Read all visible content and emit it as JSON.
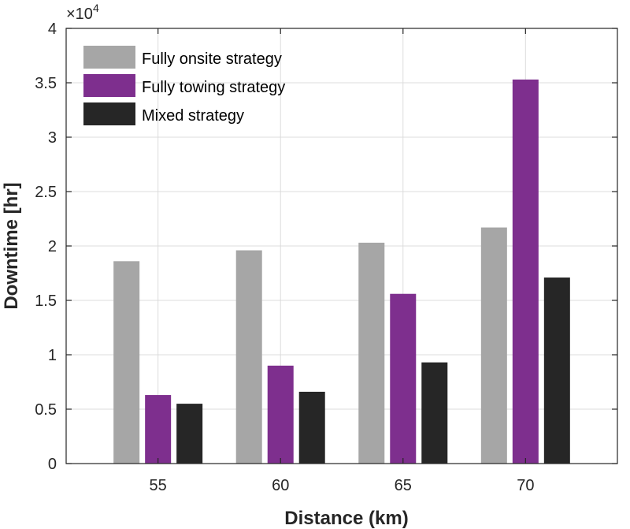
{
  "chart_data": {
    "type": "bar",
    "title": "",
    "xlabel": "Distance (km)",
    "ylabel": "Downtime [hr]",
    "y_multiplier_base": "×10",
    "y_multiplier_exp": "4",
    "categories": [
      "55",
      "60",
      "65",
      "70"
    ],
    "yticks": [
      "0",
      "0.5",
      "1",
      "1.5",
      "2",
      "2.5",
      "3",
      "3.5",
      "4"
    ],
    "ylim": [
      0,
      40000
    ],
    "grid": true,
    "legend_position": "top-left",
    "series": [
      {
        "name": "Fully onsite strategy",
        "color": "#a6a6a6",
        "values": [
          18600,
          19600,
          20300,
          21700
        ]
      },
      {
        "name": "Fully towing strategy",
        "color": "#7e2f8e",
        "values": [
          6300,
          9000,
          15600,
          35300
        ]
      },
      {
        "name": "Mixed strategy",
        "color": "#262626",
        "values": [
          5500,
          6600,
          9300,
          17100
        ]
      }
    ]
  }
}
